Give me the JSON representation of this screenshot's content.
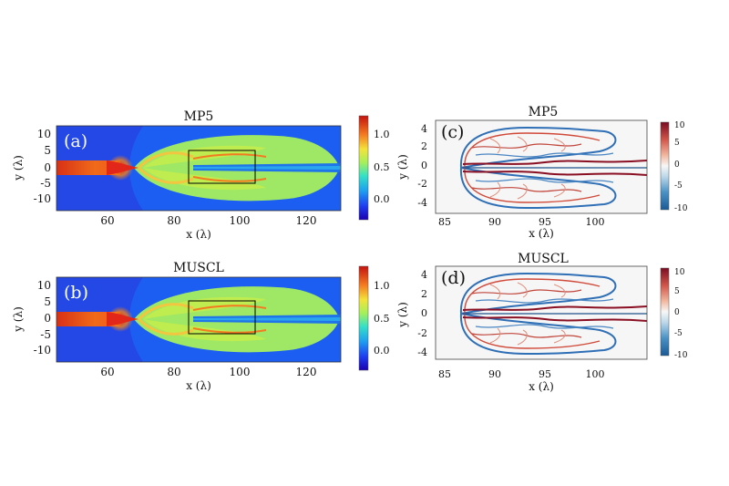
{
  "chart_data": [
    {
      "type": "heatmap",
      "panel_label": "(a)",
      "title": "MP5",
      "xlabel": "x (λ)",
      "ylabel": "y (λ)",
      "xlim": [
        45,
        130
      ],
      "ylim": [
        -13,
        13
      ],
      "xticks": [
        "60",
        "80",
        "100",
        "120"
      ],
      "yticks": [
        "10",
        "5",
        "0",
        "-5",
        "-10"
      ],
      "colorbar": {
        "range": [
          -0.3,
          1.3
        ],
        "ticks": [
          "1.0",
          "0.5",
          "0.0"
        ],
        "colormap": "jet"
      },
      "inset_box": {
        "x": [
          84,
          104
        ],
        "y": [
          -5,
          5
        ]
      }
    },
    {
      "type": "heatmap",
      "panel_label": "(b)",
      "title": "MUSCL",
      "xlabel": "x (λ)",
      "ylabel": "y (λ)",
      "xlim": [
        45,
        130
      ],
      "ylim": [
        -13,
        13
      ],
      "xticks": [
        "60",
        "80",
        "100",
        "120"
      ],
      "yticks": [
        "10",
        "5",
        "0",
        "-5",
        "-10"
      ],
      "colorbar": {
        "range": [
          -0.3,
          1.3
        ],
        "ticks": [
          "1.0",
          "0.5",
          "0.0"
        ],
        "colormap": "jet"
      },
      "inset_box": {
        "x": [
          84,
          104
        ],
        "y": [
          -5,
          5
        ]
      }
    },
    {
      "type": "heatmap",
      "panel_label": "(c)",
      "title": "MP5",
      "xlabel": "x (λ)",
      "ylabel": "y (λ)",
      "xlim": [
        84,
        105
      ],
      "ylim": [
        -5,
        5
      ],
      "xticks": [
        "85",
        "90",
        "95",
        "100"
      ],
      "yticks": [
        "4",
        "2",
        "0",
        "-2",
        "-4"
      ],
      "colorbar": {
        "range": [
          -10,
          10
        ],
        "ticks": [
          "10",
          "5",
          "0",
          "-5",
          "-10"
        ],
        "colormap": "diverging red-white-blue"
      }
    },
    {
      "type": "heatmap",
      "panel_label": "(d)",
      "title": "MUSCL",
      "xlabel": "x (λ)",
      "ylabel": "y (λ)",
      "xlim": [
        84,
        105
      ],
      "ylim": [
        -5,
        5
      ],
      "xticks": [
        "85",
        "90",
        "95",
        "100"
      ],
      "yticks": [
        "4",
        "2",
        "0",
        "-2",
        "-4"
      ],
      "colorbar": {
        "range": [
          -10,
          10
        ],
        "ticks": [
          "10",
          "5",
          "0",
          "-5",
          "-10"
        ],
        "colormap": "diverging red-white-blue"
      }
    }
  ]
}
